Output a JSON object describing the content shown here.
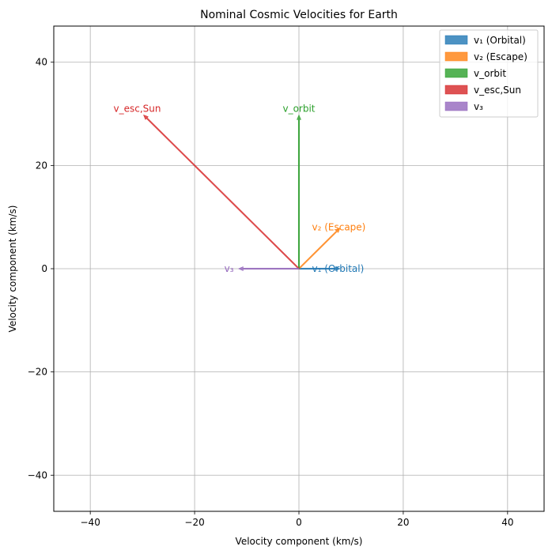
{
  "chart_data": {
    "type": "vector",
    "title": "Nominal Cosmic Velocities for Earth",
    "xlabel": "Velocity component (km/s)",
    "ylabel": "Velocity component (km/s)",
    "xlim": [
      -47,
      47
    ],
    "ylim": [
      -47,
      47
    ],
    "xticks": [
      -40,
      -20,
      0,
      20,
      40
    ],
    "yticks": [
      -40,
      -20,
      0,
      20,
      40
    ],
    "tick_labels": [
      "−40",
      "−20",
      "0",
      "20",
      "40"
    ],
    "grid": true,
    "legend_position": "top-right",
    "series": [
      {
        "name": "v₁ (Orbital)",
        "label": "v₁ (Orbital)",
        "origin": [
          0,
          0
        ],
        "vector": [
          7.9,
          0
        ],
        "color": "#1f77b4",
        "label_pos": [
          2.5,
          0
        ],
        "label_anchor": "start"
      },
      {
        "name": "v₂ (Escape)",
        "label": "v₂ (Escape)",
        "origin": [
          0,
          0
        ],
        "vector": [
          7.9,
          7.9
        ],
        "color": "#ff7f0e",
        "label_pos": [
          2.5,
          8
        ],
        "label_anchor": "start"
      },
      {
        "name": "v_orbit",
        "label": "v_orbit",
        "origin": [
          0,
          0
        ],
        "vector": [
          0,
          29.8
        ],
        "color": "#2ca02c",
        "label_pos": [
          0,
          31
        ],
        "label_anchor": "middle"
      },
      {
        "name": "v_esc,Sun",
        "label": "v_esc,Sun",
        "origin": [
          0,
          0
        ],
        "vector": [
          -29.8,
          29.8
        ],
        "color": "#d62728",
        "label_pos": [
          -31,
          31
        ],
        "label_anchor": "middle"
      },
      {
        "name": "v₃",
        "label": "v₃",
        "origin": [
          0,
          0
        ],
        "vector": [
          -11.6,
          0
        ],
        "color": "#9467bd",
        "label_pos": [
          -12.5,
          0
        ],
        "label_anchor": "end"
      }
    ]
  }
}
